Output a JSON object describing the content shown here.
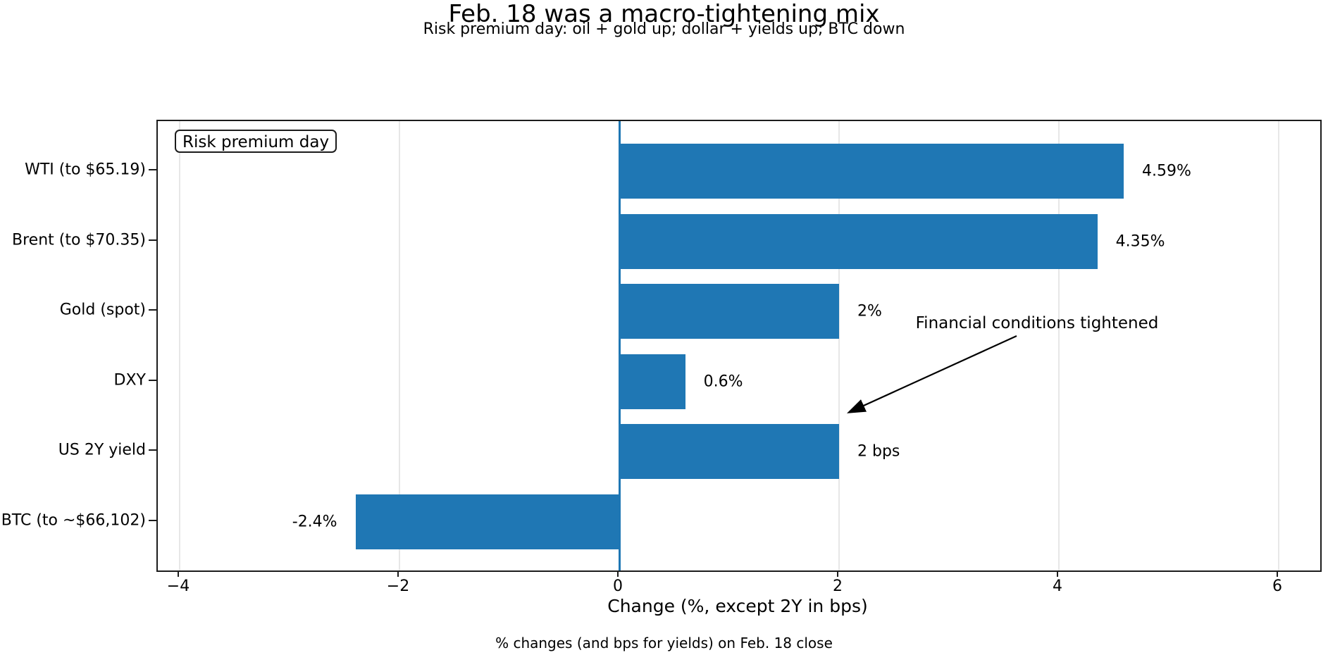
{
  "title": "Feb. 18 was a macro-tightening mix",
  "subtitle": "Risk premium day: oil + gold up; dollar + yields up; BTC down",
  "legend_label": "Risk premium day",
  "annotation_text": "Financial conditions tightened",
  "footer": "% changes (and bps for yields) on Feb. 18 close",
  "chart_data": {
    "type": "bar",
    "orientation": "horizontal",
    "title": "Feb. 18 was a macro-tightening mix",
    "subtitle": "Risk premium day: oil + gold up; dollar + yields up; BTC down",
    "xlabel": "Change (%, except 2Y in bps)",
    "categories": [
      "WTI (to $65.19)",
      "Brent (to $70.35)",
      "Gold (spot)",
      "DXY",
      "US 2Y yield",
      "BTC (to ~$66,102)"
    ],
    "values": [
      4.59,
      4.35,
      2,
      0.6,
      2,
      -2.4
    ],
    "value_labels": [
      "4.59%",
      "4.35%",
      "2%",
      "0.6%",
      "2 bps",
      "-2.4%"
    ],
    "xlim": [
      -4.2,
      6.4
    ],
    "xtick_values": [
      -4,
      -2,
      0,
      2,
      4,
      6
    ],
    "xtick_labels": [
      "−4",
      "−2",
      "0",
      "2",
      "4",
      "6"
    ],
    "grid": true,
    "bar_color": "#1f77b4",
    "zero_line_color": "#1f77b4",
    "annotation": "Financial conditions tightened",
    "legend": "Risk premium day"
  }
}
